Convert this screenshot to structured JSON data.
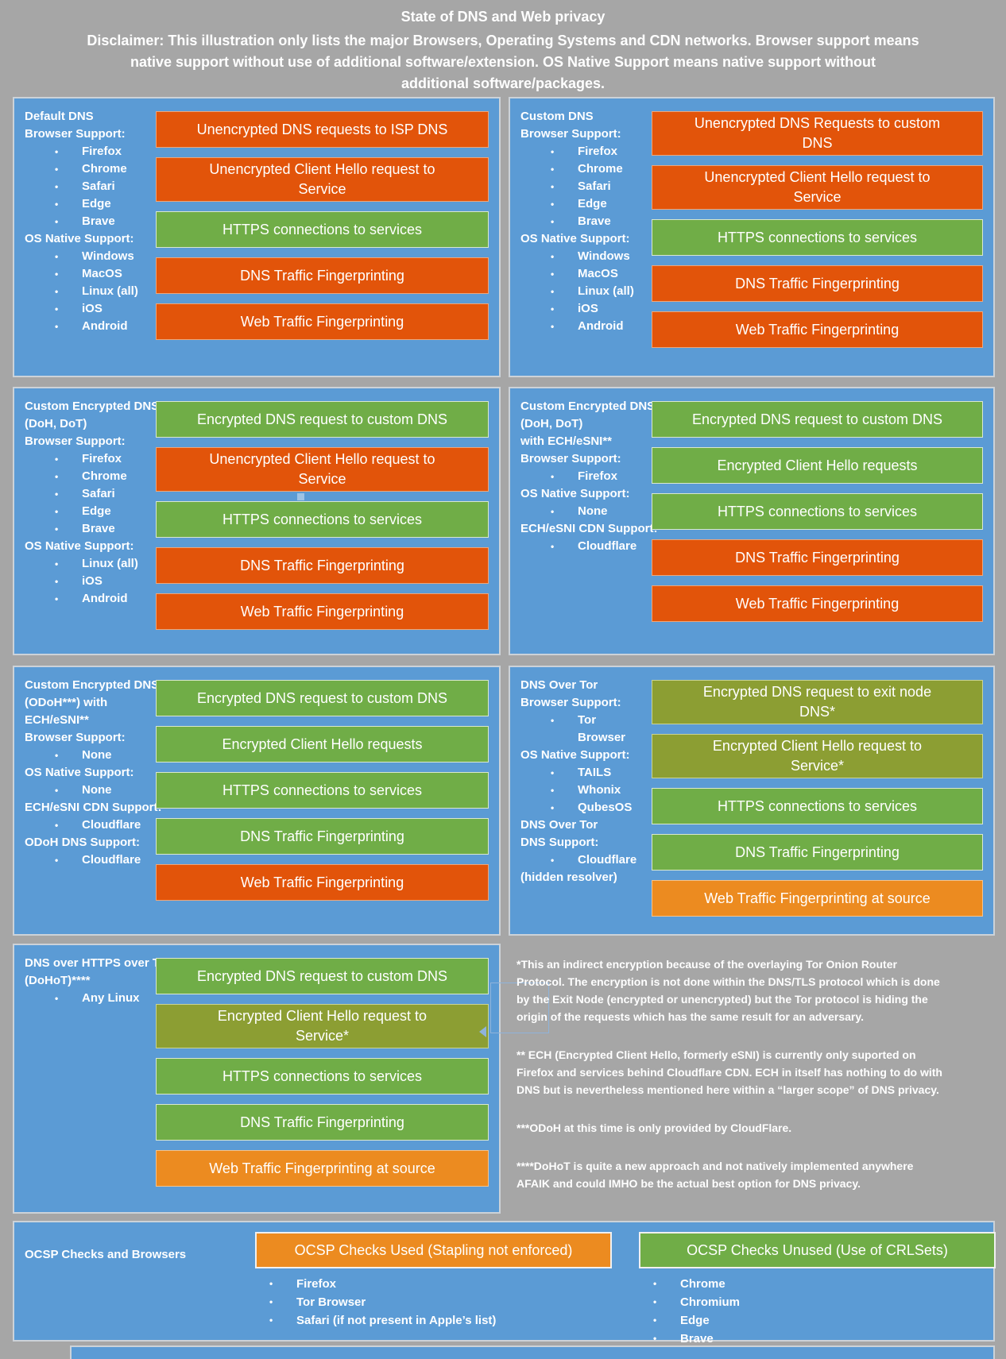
{
  "header": {
    "title": "State of DNS and Web privacy",
    "disclaimer": "Disclaimer: This illustration only lists the major Browsers, Operating Systems and CDN networks. Browser support means\nnative support without use of additional software/extension. OS Native Support means native support without\nadditional software/packages."
  },
  "colors": {
    "background": "#a6a6a6",
    "panel_blue": "#5b9bd5",
    "bad_red_orange": "#e2540a",
    "warn_amber": "#ec8b20",
    "good_green": "#70ad47",
    "indirect_olive": "#8c9e33"
  },
  "panels": [
    {
      "id": "default-dns",
      "info": [
        {
          "h": "Default DNS"
        },
        {
          "h": "Browser Support:"
        },
        {
          "b": "Firefox"
        },
        {
          "b": "Chrome"
        },
        {
          "b": "Safari"
        },
        {
          "b": "Edge"
        },
        {
          "b": "Brave"
        },
        {
          "h": "OS Native Support:"
        },
        {
          "b": "Windows"
        },
        {
          "b": "MacOS"
        },
        {
          "b": "Linux (all)"
        },
        {
          "b": "iOS"
        },
        {
          "b": "Android"
        }
      ],
      "boxes": [
        {
          "label": "Unencrypted DNS requests to ISP DNS",
          "color": "bad"
        },
        {
          "label": "Unencrypted Client Hello request to\nService",
          "color": "bad"
        },
        {
          "label": "HTTPS connections to services",
          "color": "good"
        },
        {
          "label": "DNS Traffic Fingerprinting",
          "color": "bad"
        },
        {
          "label": "Web Traffic Fingerprinting",
          "color": "bad"
        }
      ]
    },
    {
      "id": "custom-dns",
      "info": [
        {
          "h": "Custom DNS"
        },
        {
          "h": "Browser Support:"
        },
        {
          "b": "Firefox"
        },
        {
          "b": "Chrome"
        },
        {
          "b": "Safari"
        },
        {
          "b": "Edge"
        },
        {
          "b": "Brave"
        },
        {
          "h": "OS Native Support:"
        },
        {
          "b": "Windows"
        },
        {
          "b": "MacOS"
        },
        {
          "b": "Linux (all)"
        },
        {
          "b": "iOS"
        },
        {
          "b": "Android"
        }
      ],
      "boxes": [
        {
          "label": "Unencrypted DNS Requests to custom\nDNS",
          "color": "bad"
        },
        {
          "label": "Unencrypted Client Hello request to\nService",
          "color": "bad"
        },
        {
          "label": "HTTPS connections to services",
          "color": "good"
        },
        {
          "label": "DNS Traffic Fingerprinting",
          "color": "bad"
        },
        {
          "label": "Web Traffic Fingerprinting",
          "color": "bad"
        }
      ]
    },
    {
      "id": "custom-encrypted-dns-doh-dot",
      "info": [
        {
          "h": "Custom Encrypted DNS\n(DoH, DoT)"
        },
        {
          "h": "Browser Support:"
        },
        {
          "b": "Firefox"
        },
        {
          "b": "Chrome"
        },
        {
          "b": "Safari"
        },
        {
          "b": "Edge"
        },
        {
          "b": "Brave"
        },
        {
          "h": "OS Native Support:"
        },
        {
          "b": "Linux (all)"
        },
        {
          "b": "iOS"
        },
        {
          "b": "Android"
        }
      ],
      "boxes": [
        {
          "label": "Encrypted DNS request to custom DNS",
          "color": "good"
        },
        {
          "label": "Unencrypted Client Hello request to\nService",
          "color": "bad"
        },
        {
          "label": "HTTPS connections to services",
          "color": "good"
        },
        {
          "label": "DNS Traffic Fingerprinting",
          "color": "bad"
        },
        {
          "label": "Web Traffic Fingerprinting",
          "color": "bad"
        }
      ]
    },
    {
      "id": "custom-encrypted-dns-ech",
      "info": [
        {
          "h": "Custom Encrypted DNS\n(DoH, DoT)\nwith ECH/eSNI**"
        },
        {
          "h": "Browser Support:"
        },
        {
          "b": "Firefox"
        },
        {
          "h": "OS Native Support:"
        },
        {
          "b": "None"
        },
        {
          "h": "ECH/eSNI CDN Support:"
        },
        {
          "b": "Cloudflare"
        }
      ],
      "boxes": [
        {
          "label": "Encrypted DNS request to custom DNS",
          "color": "good"
        },
        {
          "label": "Encrypted Client Hello requests",
          "color": "good"
        },
        {
          "label": "HTTPS connections to services",
          "color": "good"
        },
        {
          "label": "DNS Traffic Fingerprinting",
          "color": "bad"
        },
        {
          "label": "Web Traffic Fingerprinting",
          "color": "bad"
        }
      ]
    },
    {
      "id": "custom-encrypted-dns-odoh",
      "info": [
        {
          "h": "Custom Encrypted DNS\n(ODoH***) with\nECH/eSNI**"
        },
        {
          "h": "Browser Support:"
        },
        {
          "b": "None"
        },
        {
          "h": "OS Native Support:"
        },
        {
          "b": "None"
        },
        {
          "h": "ECH/eSNI CDN Support:"
        },
        {
          "b": "Cloudflare"
        },
        {
          "h": "ODoH DNS Support:"
        },
        {
          "b": "Cloudflare"
        }
      ],
      "boxes": [
        {
          "label": "Encrypted DNS request to custom DNS",
          "color": "good"
        },
        {
          "label": "Encrypted Client Hello requests",
          "color": "good"
        },
        {
          "label": "HTTPS connections to services",
          "color": "good"
        },
        {
          "label": "DNS Traffic Fingerprinting",
          "color": "good"
        },
        {
          "label": "Web Traffic Fingerprinting",
          "color": "bad"
        }
      ]
    },
    {
      "id": "dns-over-tor",
      "info": [
        {
          "h": "DNS Over Tor"
        },
        {
          "h": "Browser Support:"
        },
        {
          "b": "Tor Browser"
        },
        {
          "h": "OS Native Support:"
        },
        {
          "b": "TAILS"
        },
        {
          "b": "Whonix"
        },
        {
          "b": "QubesOS"
        },
        {
          "h": "DNS Over Tor\nDNS Support:"
        },
        {
          "b": "Cloudflare"
        },
        {
          "h": "(hidden resolver)"
        }
      ],
      "boxes": [
        {
          "label": "Encrypted DNS request to exit node\nDNS*",
          "color": "indirect"
        },
        {
          "label": "Encrypted Client Hello request to\nService*",
          "color": "indirect"
        },
        {
          "label": "HTTPS connections to services",
          "color": "good"
        },
        {
          "label": "DNS Traffic Fingerprinting",
          "color": "good"
        },
        {
          "label": "Web Traffic Fingerprinting at source",
          "color": "warn"
        }
      ]
    },
    {
      "id": "dohot",
      "info": [
        {
          "h": "DNS over HTTPS over Tor\n(DoHoT)****"
        },
        {
          "b": "Any Linux"
        }
      ],
      "boxes": [
        {
          "label": "Encrypted DNS request to custom DNS",
          "color": "good"
        },
        {
          "label": "Encrypted Client Hello request to\nService*",
          "color": "indirect"
        },
        {
          "label": "HTTPS connections to services",
          "color": "good"
        },
        {
          "label": "DNS Traffic Fingerprinting",
          "color": "good"
        },
        {
          "label": "Web Traffic Fingerprinting at source",
          "color": "warn"
        }
      ]
    }
  ],
  "footnotes": [
    "*This an indirect encryption because of the overlaying Tor Onion Router\nProtocol. The encryption is not done within the DNS/TLS protocol which is done\nby the Exit Node (encrypted or unencrypted) but the Tor protocol is hiding the\norigin of the requests which has the same result for an adversary.",
    "** ECH (Encrypted Client Hello, formerly eSNI) is currently only suported on\nFirefox and services behind Cloudflare CDN. ECH in itself has nothing to do with\nDNS but is nevertheless mentioned here within a “larger scope” of DNS privacy.",
    "***ODoH at this time is only provided by CloudFlare.",
    "****DoHoT is quite a new approach and not natively implemented anywhere\nAFAIK and could IMHO be the actual best option for DNS privacy."
  ],
  "ocsp": {
    "title": "OCSP Checks and Browsers",
    "used": {
      "label": "OCSP Checks Used (Stapling not enforced)",
      "color": "warn",
      "items": [
        "Firefox",
        "Tor Browser",
        "Safari (if not present in Apple’s list)"
      ]
    },
    "unused": {
      "label": "OCSP Checks Unused (Use of CRLSets)",
      "color": "good",
      "items": [
        "Chrome",
        "Chromium",
        "Edge",
        "Brave"
      ]
    }
  }
}
